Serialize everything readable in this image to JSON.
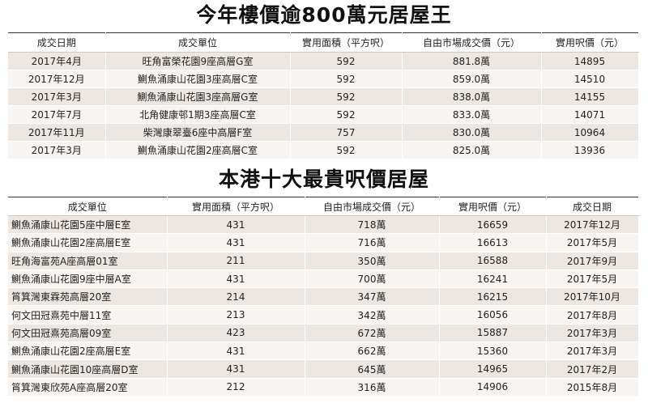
{
  "table1": {
    "title": "今年樓價逾800萬元居屋王",
    "headers": [
      "成交日期",
      "成交單位",
      "實用面積（平方呎）",
      "自由市場成交價（元）",
      "實用呎價（元）"
    ],
    "rows": [
      [
        "2017年4月",
        "旺角富榮花園9座高層G室",
        "592",
        "881.8萬",
        "14895"
      ],
      [
        "2017年12月",
        "鰂魚涌康山花園3座高層C室",
        "592",
        "859.0萬",
        "14510"
      ],
      [
        "2017年3月",
        "鰂魚涌康山花園3座高層G室",
        "592",
        "838.0萬",
        "14155"
      ],
      [
        "2017年7月",
        "北角健康邨1期3座高層C室",
        "592",
        "833.0萬",
        "14071"
      ],
      [
        "2017年11月",
        "柴灣康翠臺6座中高層F室",
        "757",
        "830.0萬",
        "10964"
      ],
      [
        "2017年3月",
        "鰂魚涌康山花園2座高層C室",
        "592",
        "825.0萬",
        "13936"
      ]
    ]
  },
  "table2": {
    "title": "本港十大最貴呎價居屋",
    "headers": [
      "成交單位",
      "實用面積（平方呎）",
      "自由市場成交價（元）",
      "實用呎價（元）",
      "成交日期"
    ],
    "rows": [
      [
        "鰂魚涌康山花園5座中層E室",
        "431",
        "718萬",
        "16659",
        "2017年12月"
      ],
      [
        "鰂魚涌康山花園2座高層E室",
        "431",
        "716萬",
        "16613",
        "2017年5月"
      ],
      [
        "旺角海富苑A座高層01室",
        "211",
        "350萬",
        "16588",
        "2017年9月"
      ],
      [
        "鰂魚涌康山花園9座中層A室",
        "431",
        "700萬",
        "16241",
        "2017年5月"
      ],
      [
        "筲箕灣東霖苑高層20室",
        "214",
        "347萬",
        "16215",
        "2017年10月"
      ],
      [
        "何文田冠熹苑中層11室",
        "213",
        "342萬",
        "16056",
        "2017年8月"
      ],
      [
        "何文田冠熹苑高層09室",
        "423",
        "672萬",
        "15887",
        "2017年3月"
      ],
      [
        "鰂魚涌康山花園2座高層E室",
        "431",
        "662萬",
        "15360",
        "2017年3月"
      ],
      [
        "鰂魚涌康山花園10座高層D室",
        "431",
        "645萬",
        "14965",
        "2017年2月"
      ],
      [
        "筲箕灣東欣苑A座高層20室",
        "212",
        "316萬",
        "14906",
        "2015年8月"
      ]
    ]
  }
}
